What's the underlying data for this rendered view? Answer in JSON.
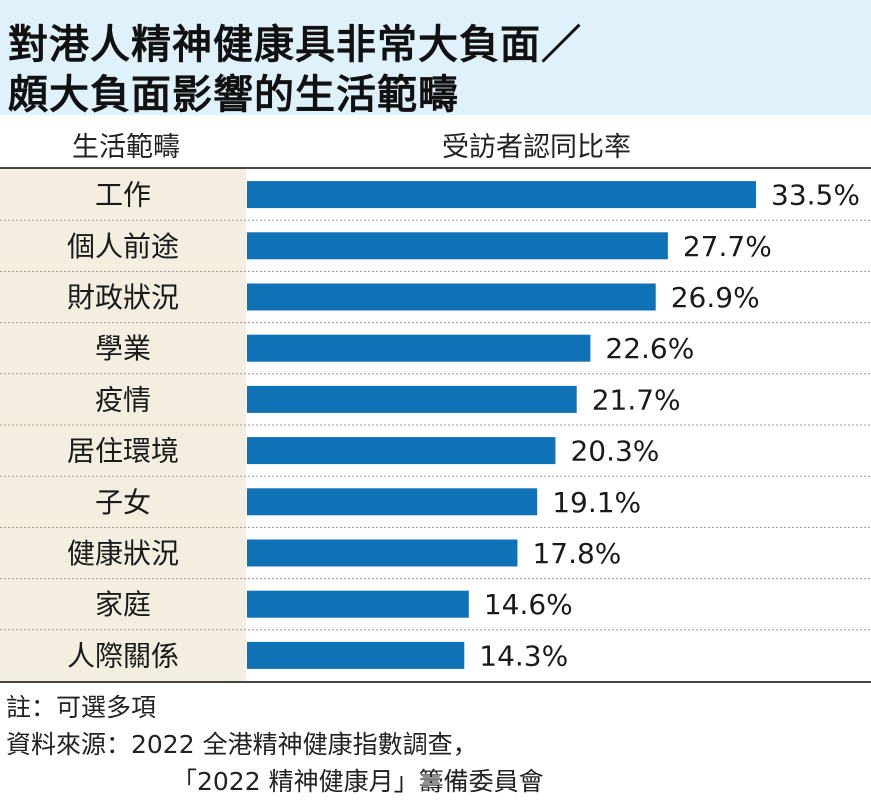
{
  "title": {
    "line1": "對港人精神健康具非常大負面／",
    "line2": "頗大負面影響的生活範疇"
  },
  "headers": {
    "category": "生活範疇",
    "value": "受訪者認同比率"
  },
  "notes": {
    "note": "註：可選多項",
    "source_line1": "資料來源：2022 全港精神健康指數調查，",
    "source_line2": "「2022 精神健康月」籌備委員會"
  },
  "colors": {
    "bar": "#0f72b6",
    "title_bg": "#dff1fb",
    "category_bg": "#f4eee1"
  },
  "chart_data": {
    "type": "bar",
    "orientation": "horizontal",
    "categories": [
      "工作",
      "個人前途",
      "財政狀況",
      "學業",
      "疫情",
      "居住環境",
      "子女",
      "健康狀況",
      "家庭",
      "人際關係"
    ],
    "values": [
      33.5,
      27.7,
      26.9,
      22.6,
      21.7,
      20.3,
      19.1,
      17.8,
      14.6,
      14.3
    ],
    "value_labels": [
      "33.5%",
      "27.7%",
      "26.9%",
      "22.6%",
      "21.7%",
      "20.3%",
      "19.1%",
      "17.8%",
      "14.6%",
      "14.3%"
    ],
    "unit": "%",
    "xlim": [
      0,
      33.5
    ],
    "grid": false,
    "legend": "none"
  }
}
